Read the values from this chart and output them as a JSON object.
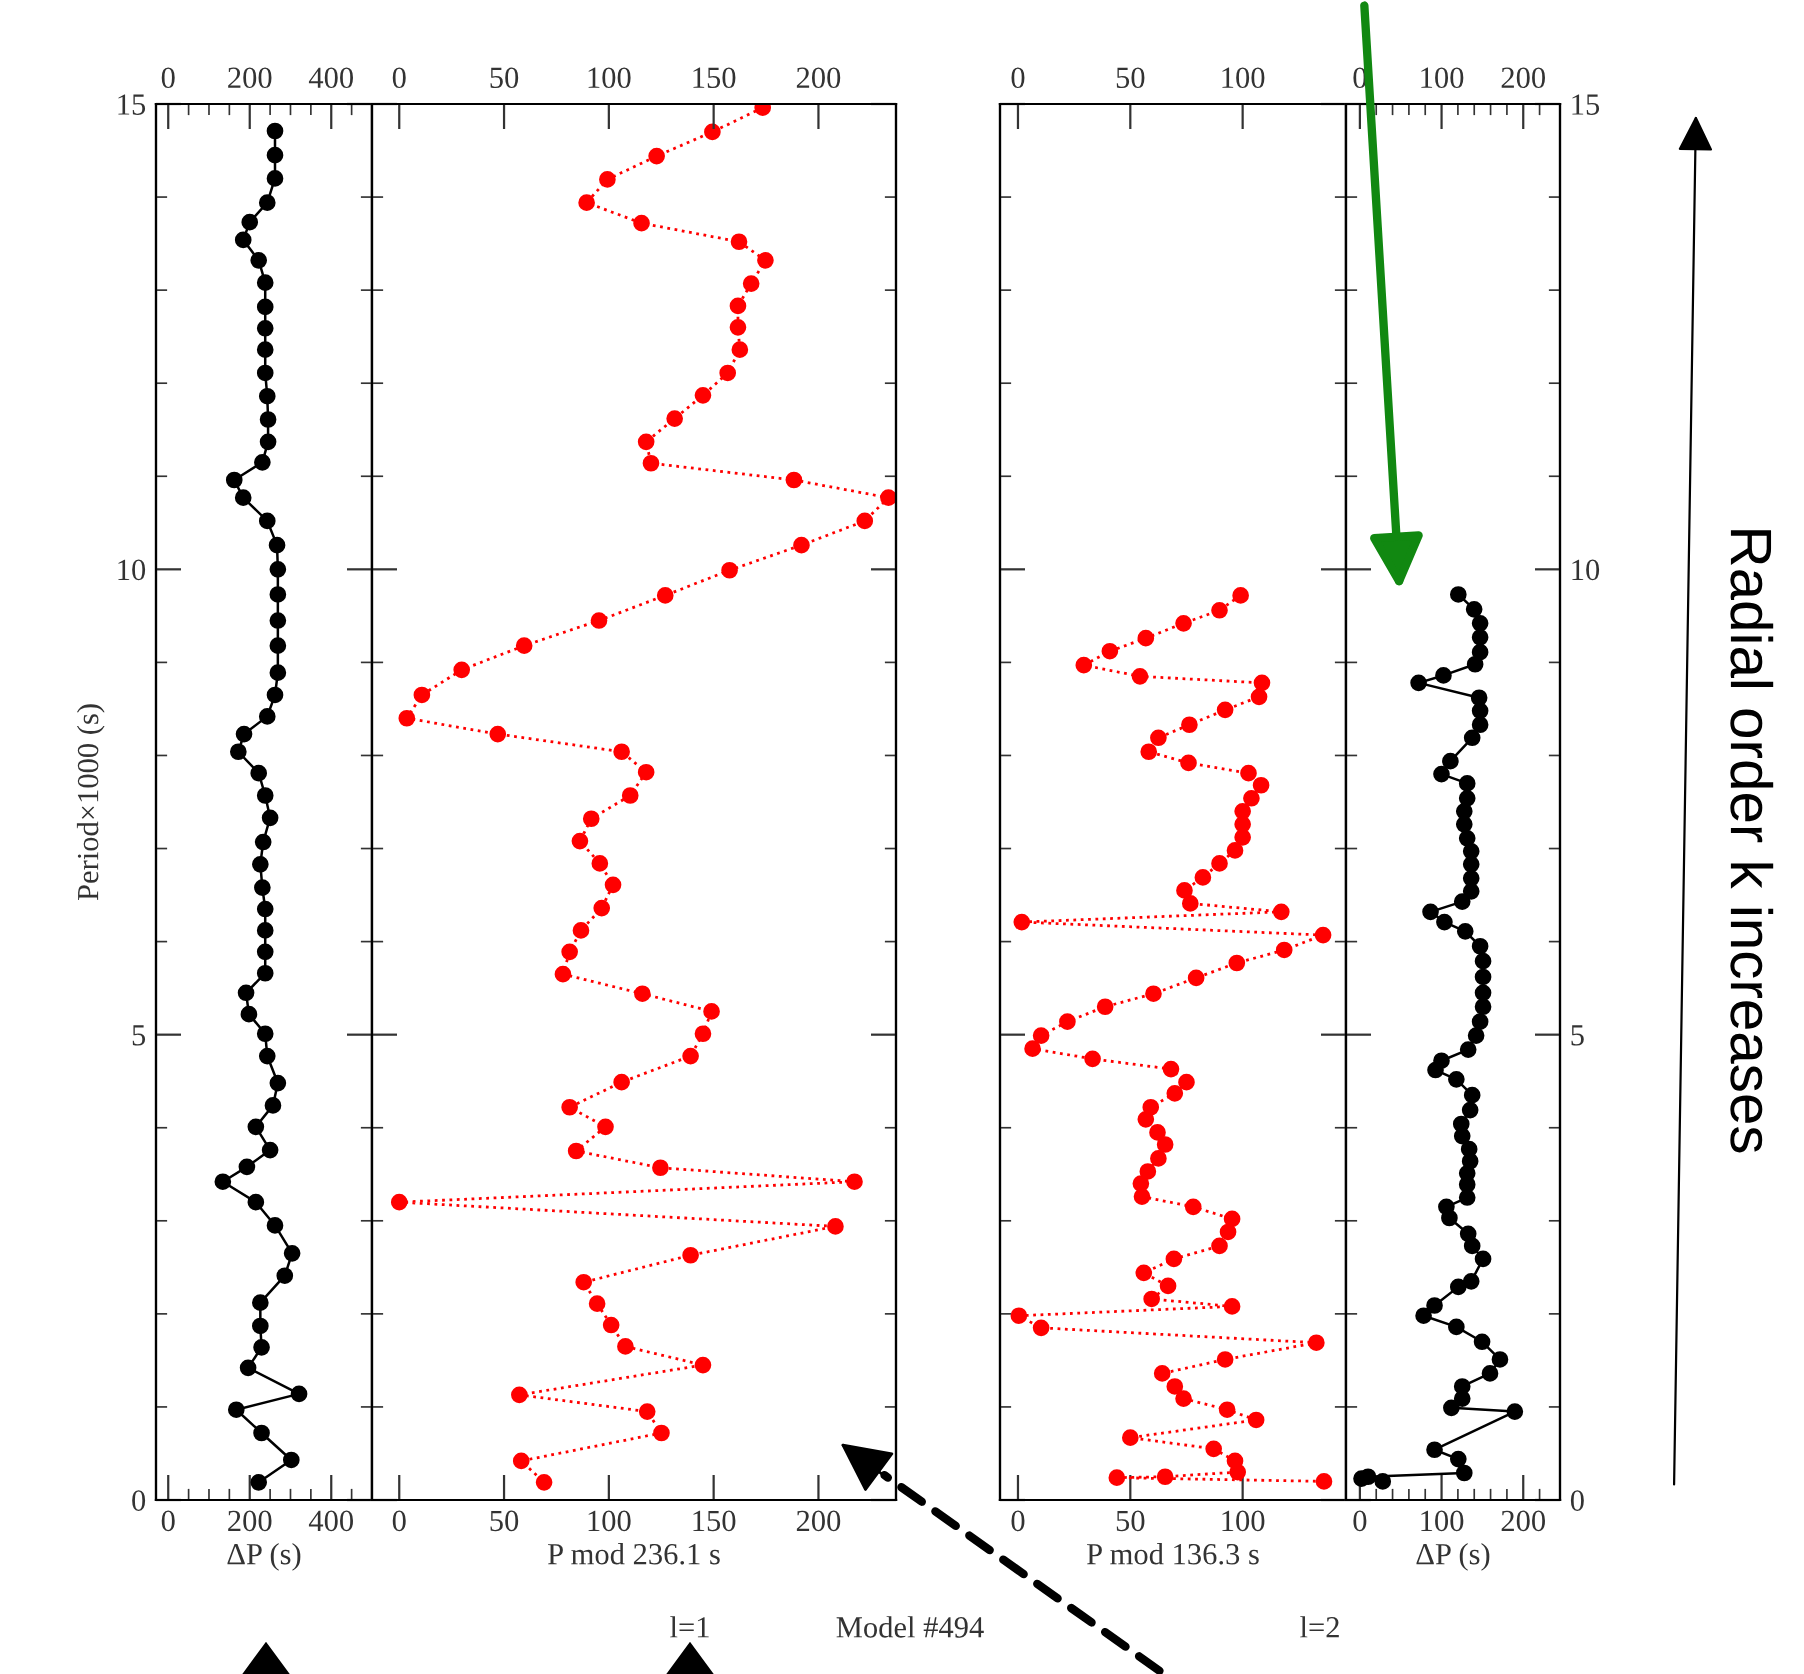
{
  "chart_data": [
    {
      "type": "line",
      "xlabel": "ΔP (s)",
      "ylabel": "Period×1000 (s)",
      "marker": "circle",
      "line_style": "solid",
      "grid": false,
      "xlim": [
        -30,
        500
      ],
      "xticks": [
        0,
        {
          "value": 50,
          "label": null
        },
        {
          "value": 100,
          "label": null
        },
        {
          "value": 150,
          "label": null
        },
        200,
        {
          "value": 250,
          "label": null
        },
        {
          "value": 300,
          "label": null
        },
        {
          "value": 350,
          "label": null
        },
        400,
        {
          "value": 450,
          "label": null
        }
      ],
      "x2lim": [
        -30,
        500
      ],
      "x2ticks": [
        0,
        {
          "value": 50,
          "label": null
        },
        {
          "value": 100,
          "label": null
        },
        {
          "value": 150,
          "label": null
        },
        200,
        {
          "value": 250,
          "label": null
        },
        {
          "value": 300,
          "label": null
        },
        {
          "value": 350,
          "label": null
        },
        400,
        {
          "value": 450,
          "label": null
        }
      ],
      "ylim": [
        0,
        15
      ],
      "yticks": [
        0,
        {
          "value": 1,
          "label": null
        },
        {
          "value": 2,
          "label": null
        },
        {
          "value": 3,
          "label": null
        },
        {
          "value": 4,
          "label": null
        },
        5,
        {
          "value": 6,
          "label": null
        },
        {
          "value": 7,
          "label": null
        },
        {
          "value": 8,
          "label": null
        },
        {
          "value": 9,
          "label": null
        },
        10,
        {
          "value": 11,
          "label": null
        },
        {
          "value": 12,
          "label": null
        },
        {
          "value": 13,
          "label": null
        },
        {
          "value": 14,
          "label": null
        },
        15
      ],
      "series": [
        {
          "color": "#000000",
          "x": [
            262,
            262,
            262,
            243,
            200,
            184,
            222,
            238,
            238,
            238,
            238,
            238,
            243,
            245,
            245,
            231,
            162,
            184,
            243,
            267,
            269,
            269,
            269,
            269,
            269,
            262,
            243,
            186,
            172,
            222,
            238,
            250,
            233,
            226,
            231,
            238,
            238,
            238,
            238,
            191,
            198,
            238,
            243,
            269,
            257,
            215,
            250,
            193,
            134,
            215,
            262,
            304,
            286,
            226,
            226,
            229,
            196,
            321,
            167,
            229,
            302,
            222
          ],
          "values": [
            14.71,
            14.45,
            14.2,
            13.94,
            13.73,
            13.54,
            13.32,
            13.08,
            12.82,
            12.59,
            12.36,
            12.11,
            11.86,
            11.61,
            11.37,
            11.15,
            10.96,
            10.77,
            10.52,
            10.26,
            10.0,
            9.73,
            9.45,
            9.18,
            8.89,
            8.65,
            8.42,
            8.23,
            8.04,
            7.81,
            7.57,
            7.33,
            7.07,
            6.83,
            6.58,
            6.35,
            6.12,
            5.89,
            5.66,
            5.45,
            5.22,
            5.01,
            4.77,
            4.48,
            4.24,
            4.01,
            3.76,
            3.58,
            3.42,
            3.2,
            2.95,
            2.65,
            2.41,
            2.12,
            1.87,
            1.64,
            1.42,
            1.14,
            0.97,
            0.72,
            0.43,
            0.19
          ]
        }
      ]
    },
    {
      "type": "line",
      "xlabel": "P mod 236.1 s",
      "annotations": [
        "l=1",
        "Model #494"
      ],
      "marker": "circle",
      "line_style": "dotted",
      "grid": false,
      "tick_labels": "x",
      "xlim": [
        -13,
        237
      ],
      "xticks": [
        0,
        50,
        100,
        150,
        200
      ],
      "x2lim": [
        -13,
        237
      ],
      "x2ticks": [
        0,
        50,
        100,
        150,
        200
      ],
      "ylim": [
        0,
        15
      ],
      "yticks": [
        0,
        {
          "value": 1,
          "label": null
        },
        {
          "value": 2,
          "label": null
        },
        {
          "value": 3,
          "label": null
        },
        {
          "value": 4,
          "label": null
        },
        5,
        {
          "value": 6,
          "label": null
        },
        {
          "value": 7,
          "label": null
        },
        {
          "value": 8,
          "label": null
        },
        {
          "value": 9,
          "label": null
        },
        10,
        {
          "value": 11,
          "label": null
        },
        {
          "value": 12,
          "label": null
        },
        {
          "value": 13,
          "label": null
        },
        {
          "value": 14,
          "label": null
        },
        15
      ],
      "series": [
        {
          "color": "#ff0000",
          "x": [
            173.4,
            149.4,
            122.8,
            99.3,
            89.4,
            115.6,
            162.1,
            174.7,
            167.9,
            161.6,
            161.6,
            162.5,
            156.7,
            144.9,
            131.4,
            117.8,
            120.1,
            188.3,
            233.4,
            222.1,
            191.9,
            157.6,
            126.9,
            95.3,
            59.6,
            29.8,
            10.8,
            3.6,
            47,
            106.1,
            117.8,
            110.2,
            91.6,
            86.2,
            95.7,
            102,
            96.6,
            86.7,
            81.3,
            78.1,
            116,
            149,
            144.9,
            139,
            106.1,
            81.3,
            98.4,
            84.4,
            124.6,
            217.2,
            0,
            208.1,
            139,
            88,
            94.4,
            101.1,
            107.9,
            144.9,
            57.3,
            118.3,
            125.1,
            58.2,
            69.1
          ],
          "values": [
            14.96,
            14.7,
            14.44,
            14.19,
            13.94,
            13.72,
            13.52,
            13.32,
            13.07,
            12.83,
            12.6,
            12.36,
            12.11,
            11.87,
            11.62,
            11.37,
            11.14,
            10.96,
            10.77,
            10.52,
            10.26,
            9.99,
            9.72,
            9.45,
            9.18,
            8.92,
            8.65,
            8.4,
            8.23,
            8.04,
            7.82,
            7.57,
            7.32,
            7.08,
            6.84,
            6.61,
            6.36,
            6.12,
            5.89,
            5.65,
            5.44,
            5.25,
            5.01,
            4.77,
            4.49,
            4.22,
            4.01,
            3.75,
            3.57,
            3.42,
            3.2,
            2.94,
            2.63,
            2.34,
            2.11,
            1.88,
            1.65,
            1.45,
            1.13,
            0.95,
            0.72,
            0.42,
            0.19
          ]
        }
      ]
    },
    {
      "type": "line",
      "xlabel": "P mod 136.3 s",
      "annotations": [
        "l=2"
      ],
      "marker": "circle",
      "line_style": "dotted",
      "grid": false,
      "tick_labels": "x",
      "xlim": [
        -8,
        146
      ],
      "xticks": [
        0,
        50,
        100
      ],
      "x2lim": [
        -8,
        146
      ],
      "x2ticks": [
        0,
        50,
        100
      ],
      "ylim": [
        0,
        15
      ],
      "yticks": [
        0,
        {
          "value": 1,
          "label": null
        },
        {
          "value": 2,
          "label": null
        },
        {
          "value": 3,
          "label": null
        },
        {
          "value": 4,
          "label": null
        },
        5,
        {
          "value": 6,
          "label": null
        },
        {
          "value": 7,
          "label": null
        },
        {
          "value": 8,
          "label": null
        },
        {
          "value": 9,
          "label": null
        },
        10,
        {
          "value": 11,
          "label": null
        },
        {
          "value": 12,
          "label": null
        },
        {
          "value": 13,
          "label": null
        },
        {
          "value": 14,
          "label": null
        },
        15
      ],
      "series": [
        {
          "color": "#ff0000",
          "x": [
            99.1,
            89.7,
            73.7,
            56.9,
            40.9,
            29.3,
            54.3,
            108.6,
            107.3,
            92.2,
            76.3,
            62.5,
            58.2,
            75.9,
            102.6,
            108.2,
            103.9,
            100,
            100,
            100,
            96.6,
            89.7,
            82.3,
            74.1,
            76.7,
            117.2,
            1.7,
            135.8,
            118.5,
            97.4,
            79.3,
            60.3,
            38.8,
            22,
            10.3,
            6.5,
            33.2,
            68.1,
            75,
            69.8,
            59.1,
            56.9,
            62.1,
            65.5,
            62.5,
            57.8,
            54.7,
            55.2,
            78,
            95.3,
            93.5,
            89.7,
            69.4,
            56,
            66.8,
            59.5,
            95.3,
            0.4,
            10.3,
            132.8,
            92.2,
            64.2,
            69.8,
            73.7,
            93.1,
            106,
            50,
            87.1,
            96.6,
            97.8,
            65.5,
            44,
            136.2
          ],
          "values": [
            9.72,
            9.56,
            9.42,
            9.26,
            9.12,
            8.97,
            8.85,
            8.78,
            8.63,
            8.49,
            8.33,
            8.19,
            8.04,
            7.92,
            7.81,
            7.68,
            7.54,
            7.4,
            7.26,
            7.12,
            6.98,
            6.84,
            6.69,
            6.55,
            6.41,
            6.32,
            6.21,
            6.07,
            5.91,
            5.77,
            5.61,
            5.44,
            5.3,
            5.14,
            4.99,
            4.85,
            4.74,
            4.63,
            4.49,
            4.37,
            4.22,
            4.09,
            3.95,
            3.82,
            3.67,
            3.53,
            3.4,
            3.26,
            3.15,
            3.02,
            2.88,
            2.73,
            2.59,
            2.44,
            2.3,
            2.16,
            2.08,
            1.98,
            1.85,
            1.69,
            1.51,
            1.36,
            1.22,
            1.09,
            0.97,
            0.86,
            0.67,
            0.55,
            0.42,
            0.3,
            0.25,
            0.24,
            0.2
          ]
        }
      ]
    },
    {
      "type": "line",
      "xlabel": "ΔP (s)",
      "annotations": [
        "Radial order k increases"
      ],
      "marker": "circle",
      "line_style": "solid",
      "grid": false,
      "xlim": [
        -17,
        245
      ],
      "xticks": [
        0,
        {
          "value": 20,
          "label": null
        },
        {
          "value": 40,
          "label": null
        },
        {
          "value": 60,
          "label": null
        },
        {
          "value": 80,
          "label": null
        },
        100,
        {
          "value": 120,
          "label": null
        },
        {
          "value": 140,
          "label": null
        },
        {
          "value": 160,
          "label": null
        },
        {
          "value": 180,
          "label": null
        },
        200,
        {
          "value": 220,
          "label": null
        }
      ],
      "x2lim": [
        -17,
        245
      ],
      "x2ticks": [
        0,
        {
          "value": 20,
          "label": null
        },
        {
          "value": 40,
          "label": null
        },
        {
          "value": 60,
          "label": null
        },
        {
          "value": 80,
          "label": null
        },
        100,
        {
          "value": 120,
          "label": null
        },
        {
          "value": 140,
          "label": null
        },
        {
          "value": 160,
          "label": null
        },
        {
          "value": 180,
          "label": null
        },
        200,
        {
          "value": 220,
          "label": null
        }
      ],
      "ylim": [
        0,
        15
      ],
      "yticks": [
        0,
        {
          "value": 1,
          "label": null
        },
        {
          "value": 2,
          "label": null
        },
        {
          "value": 3,
          "label": null
        },
        {
          "value": 4,
          "label": null
        },
        5,
        {
          "value": 6,
          "label": null
        },
        {
          "value": 7,
          "label": null
        },
        {
          "value": 8,
          "label": null
        },
        {
          "value": 9,
          "label": null
        },
        10,
        {
          "value": 11,
          "label": null
        },
        {
          "value": 12,
          "label": null
        },
        {
          "value": 13,
          "label": null
        },
        {
          "value": 14,
          "label": null
        },
        15
      ],
      "series": [
        {
          "color": "#000000",
          "x": [
            120.5,
            139.9,
            147.2,
            147.2,
            147.2,
            141.1,
            102.3,
            71.9,
            146,
            147.2,
            147.2,
            137.5,
            110.8,
            99.9,
            131.4,
            131.4,
            127.8,
            127.8,
            131.4,
            136.3,
            136.3,
            136.3,
            136.3,
            125.3,
            86.5,
            103.5,
            129,
            147.2,
            150.8,
            150.8,
            150.8,
            150.8,
            147.2,
            142.3,
            132.6,
            99.9,
            92.6,
            118.1,
            137.5,
            135,
            124.1,
            125.3,
            133.8,
            135,
            131.4,
            131.4,
            131.4,
            105.9,
            109.6,
            132.6,
            137.5,
            150.8,
            136.3,
            120.5,
            91.4,
            78,
            118.1,
            149.6,
            171.5,
            159.3,
            125.3,
            125.3,
            112,
            189.7,
            91.4,
            120.5,
            127.8,
            10,
            2,
            28
          ],
          "values": [
            9.73,
            9.57,
            9.42,
            9.27,
            9.11,
            8.98,
            8.86,
            8.78,
            8.62,
            8.48,
            8.33,
            8.19,
            7.94,
            7.8,
            7.7,
            7.54,
            7.4,
            7.26,
            7.11,
            6.97,
            6.83,
            6.68,
            6.54,
            6.43,
            6.32,
            6.21,
            6.11,
            5.95,
            5.79,
            5.62,
            5.45,
            5.3,
            5.14,
            4.99,
            4.84,
            4.72,
            4.62,
            4.52,
            4.35,
            4.19,
            4.04,
            3.91,
            3.77,
            3.64,
            3.51,
            3.39,
            3.25,
            3.15,
            3.03,
            2.86,
            2.73,
            2.59,
            2.35,
            2.29,
            2.09,
            1.98,
            1.86,
            1.7,
            1.51,
            1.36,
            1.22,
            1.09,
            0.99,
            0.95,
            0.54,
            0.44,
            0.29,
            0.25,
            0.23,
            0.2
          ]
        }
      ]
    }
  ]
}
